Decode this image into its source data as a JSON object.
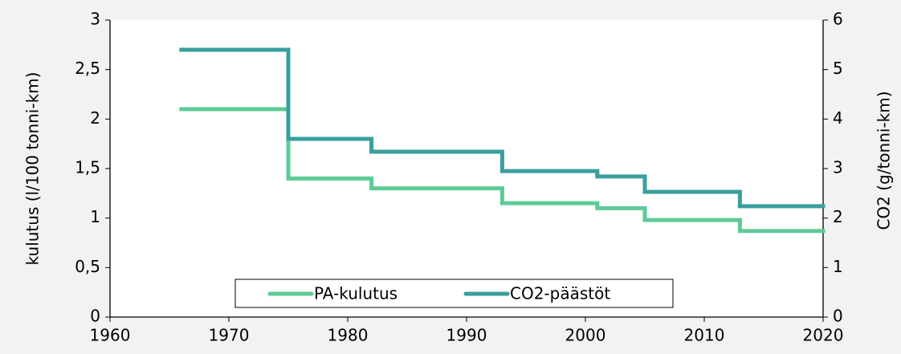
{
  "chart_data": {
    "type": "step",
    "x": [
      1966,
      1975,
      1982,
      1993,
      2001,
      2005,
      2013
    ],
    "xlim": [
      1960,
      2020
    ],
    "xticks": [
      1960,
      1970,
      1980,
      1990,
      2000,
      2010,
      2020
    ],
    "ylim": [
      0,
      3
    ],
    "yticks": [
      0,
      {
        "value": 0.5,
        "label": "0,5"
      },
      1,
      {
        "value": 1.5,
        "label": "1,5"
      },
      2,
      {
        "value": 2.5,
        "label": "2,5"
      },
      3
    ],
    "y2lim": [
      0,
      6
    ],
    "y2ticks": [
      0,
      1,
      2,
      3,
      4,
      5,
      6
    ],
    "ylabel": "kulutus (l/100 tonni-km)",
    "y2label": "CO2 (g/tonni-km)",
    "grid": false,
    "legend": "bottom",
    "series": [
      {
        "name": "PA-kulutus",
        "color": "#5ecb97",
        "values": [
          2.1,
          1.4,
          1.3,
          1.15,
          1.1,
          0.98,
          0.87
        ]
      },
      {
        "name": "CO2-päästöt",
        "color": "#3a9e9e",
        "axis": "y2",
        "values": [
          5.4,
          3.6,
          3.34,
          2.95,
          2.84,
          2.53,
          2.24
        ]
      }
    ]
  }
}
